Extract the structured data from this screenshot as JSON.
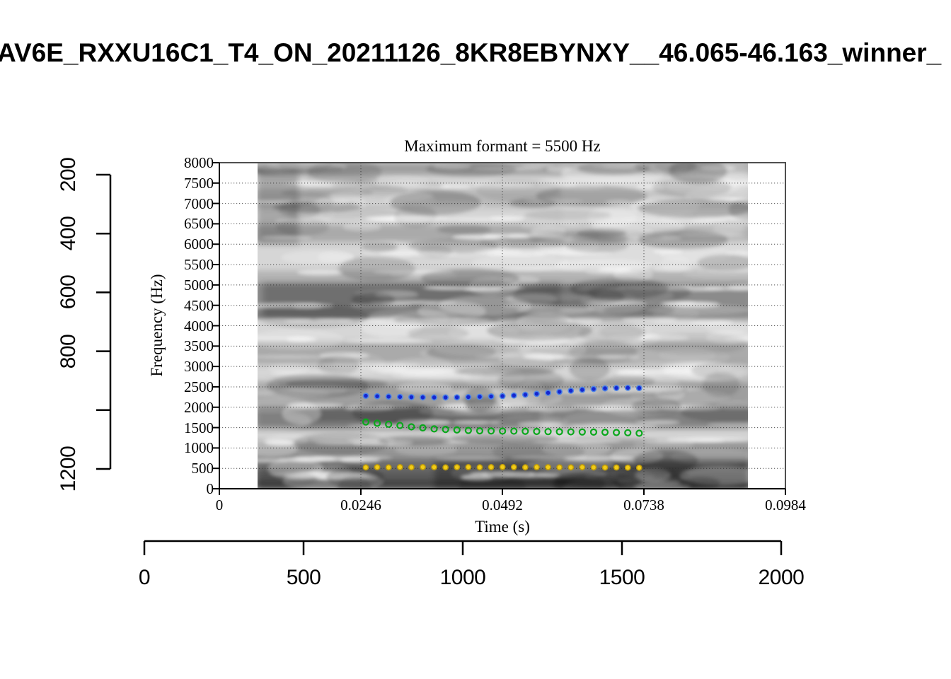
{
  "window_title": "AV6E_RXXU16C1_T4_ON_20211126_8KR8EBYNXY__46.065-46.163_winner_",
  "plot": {
    "title": "Maximum formant  =  5500 Hz",
    "xlabel": "Time (s)",
    "ylabel": "Frequency (Hz)",
    "x_ticks": [
      {
        "value": 0,
        "label": "0"
      },
      {
        "value": 0.0246,
        "label": "0.0246"
      },
      {
        "value": 0.0492,
        "label": "0.0492"
      },
      {
        "value": 0.0738,
        "label": "0.0738"
      },
      {
        "value": 0.0984,
        "label": "0.0984"
      }
    ],
    "y_ticks": [
      {
        "value": 0,
        "label": "0"
      },
      {
        "value": 500,
        "label": "500"
      },
      {
        "value": 1000,
        "label": "1000"
      },
      {
        "value": 1500,
        "label": "1500"
      },
      {
        "value": 2000,
        "label": "2000"
      },
      {
        "value": 2500,
        "label": "2500"
      },
      {
        "value": 3000,
        "label": "3000"
      },
      {
        "value": 3500,
        "label": "3500"
      },
      {
        "value": 4000,
        "label": "4000"
      },
      {
        "value": 4500,
        "label": "4500"
      },
      {
        "value": 5000,
        "label": "5000"
      },
      {
        "value": 5500,
        "label": "5500"
      },
      {
        "value": 6000,
        "label": "6000"
      },
      {
        "value": 6500,
        "label": "6500"
      },
      {
        "value": 7000,
        "label": "7000"
      },
      {
        "value": 7500,
        "label": "7500"
      },
      {
        "value": 8000,
        "label": "8000"
      }
    ]
  },
  "outer_axes": {
    "left": {
      "ticks": [
        {
          "value": 200,
          "label": "200"
        },
        {
          "value": 400,
          "label": "400"
        },
        {
          "value": 600,
          "label": "600"
        },
        {
          "value": 800,
          "label": "800"
        },
        {
          "value": 1000,
          "label": ""
        },
        {
          "value": 1200,
          "label": "1200"
        }
      ]
    },
    "bottom": {
      "ticks": [
        {
          "value": 0,
          "label": "0"
        },
        {
          "value": 500,
          "label": "500"
        },
        {
          "value": 1000,
          "label": "1000"
        },
        {
          "value": 1500,
          "label": "1500"
        },
        {
          "value": 2000,
          "label": "2000"
        }
      ]
    }
  },
  "chart_data": {
    "type": "scatter",
    "title": "Maximum formant  =  5500 Hz",
    "xlabel": "Time (s)",
    "ylabel": "Frequency (Hz)",
    "xlim": [
      0,
      0.0984
    ],
    "ylim": [
      0,
      8000
    ],
    "grid": "dotted horizontal every 500 Hz and vertical at labeled times, over grayscale spectrogram",
    "background": "grayscale wideband spectrogram, 0-8000 Hz",
    "x": [
      0.02546,
      0.02744,
      0.02942,
      0.0314,
      0.03338,
      0.03536,
      0.03734,
      0.03932,
      0.0413,
      0.04328,
      0.04526,
      0.04724,
      0.04922,
      0.0512,
      0.05318,
      0.05516,
      0.05714,
      0.05912,
      0.0611,
      0.06308,
      0.06506,
      0.06704,
      0.06902,
      0.071,
      0.07298
    ],
    "series": [
      {
        "name": "formant-track-upper-blue",
        "marker": "filled-circle",
        "color": "#1626cf",
        "edge_color": "#4e86e6",
        "values": [
          2280,
          2270,
          2261,
          2253,
          2247,
          2242,
          2240,
          2240,
          2243,
          2249,
          2256,
          2264,
          2274,
          2289,
          2307,
          2329,
          2353,
          2379,
          2405,
          2428,
          2448,
          2463,
          2472,
          2476,
          2471
        ]
      },
      {
        "name": "formant-track-middle-green",
        "marker": "open-circle",
        "color": "#0aa81c",
        "edge_color": "#0aa81c",
        "values": [
          1638,
          1607,
          1582,
          1552,
          1519,
          1494,
          1468,
          1455,
          1443,
          1430,
          1421,
          1418,
          1415,
          1413,
          1410,
          1406,
          1402,
          1399,
          1396,
          1393,
          1390,
          1386,
          1380,
          1374,
          1362
        ]
      },
      {
        "name": "formant-track-lower-yellow",
        "marker": "filled-circle",
        "color": "#f2cc16",
        "edge_color": "#bd9a0c",
        "values": [
          524,
          529,
          524,
          530,
          526,
          531,
          528,
          524,
          529,
          531,
          526,
          530,
          534,
          530,
          526,
          530,
          529,
          525,
          524,
          528,
          524,
          520,
          523,
          519,
          515
        ]
      }
    ]
  },
  "spectrogram": {
    "bands": [
      {
        "f_lo": 7700,
        "f_hi": 8000,
        "shade": 0.38
      },
      {
        "f_lo": 6900,
        "f_hi": 7350,
        "shade": 0.2
      },
      {
        "f_lo": 6050,
        "f_hi": 6480,
        "shade": 0.3
      },
      {
        "f_lo": 5050,
        "f_hi": 5350,
        "shade": 0.24
      },
      {
        "f_lo": 4150,
        "f_hi": 5050,
        "shade": 0.52
      },
      {
        "f_lo": 3050,
        "f_hi": 3600,
        "shade": 0.3
      },
      {
        "f_lo": 2050,
        "f_hi": 2650,
        "shade": 0.38
      },
      {
        "f_lo": 1480,
        "f_hi": 2020,
        "shade": 0.58
      },
      {
        "f_lo": 760,
        "f_hi": 1180,
        "shade": 0.42
      },
      {
        "f_lo": 220,
        "f_hi": 760,
        "shade": 0.58
      },
      {
        "f_lo": 0,
        "f_hi": 240,
        "shade": 0.72
      }
    ]
  },
  "colors": {
    "frame": "#4f4f4f",
    "axis": "#000000",
    "grid": "#2f2f2f",
    "spectrogram_base": "#d6d6d6"
  }
}
